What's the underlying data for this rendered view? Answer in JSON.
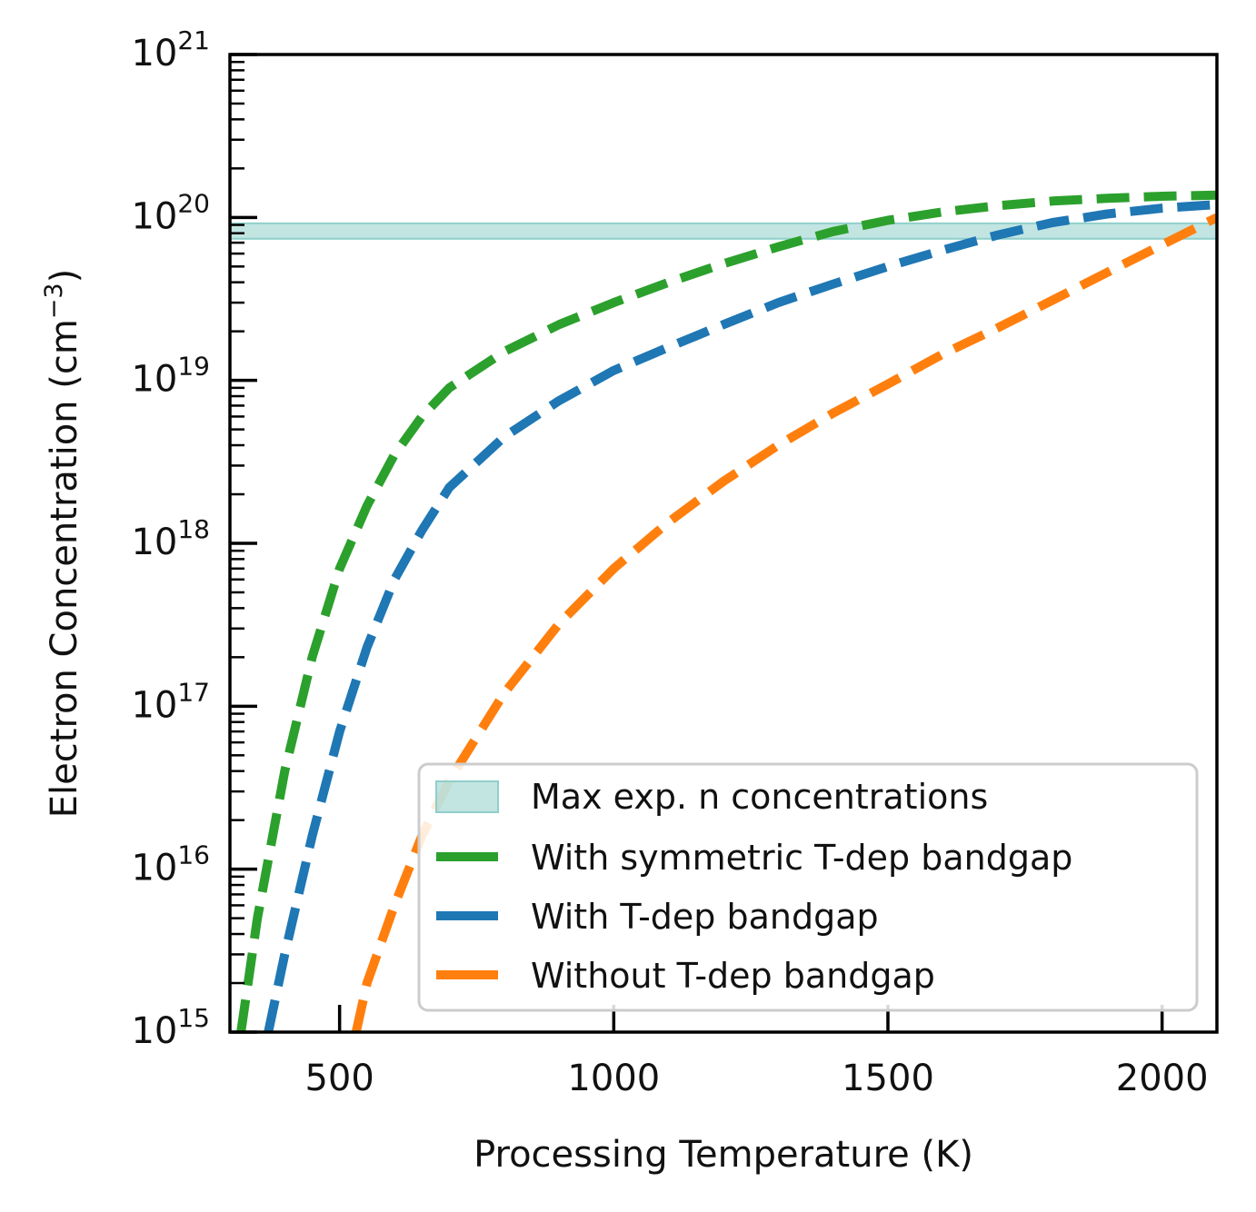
{
  "chart_data": {
    "type": "line",
    "xlabel": "Processing Temperature (K)",
    "ylabel": "Electron Concentration (cm",
    "ylabel_sup": "−3",
    "ylabel_close": ")",
    "xscale": "linear",
    "yscale": "log",
    "xlim": [
      300,
      2100
    ],
    "ylim": [
      1000000000000000.0,
      1e+21
    ],
    "x_ticks": [
      500,
      1000,
      1500,
      2000
    ],
    "x_tick_labels": [
      "500",
      "1000",
      "1500",
      "2000"
    ],
    "y_ticks": [
      1000000000000000.0,
      1e+16,
      1e+17,
      1e+18,
      1e+19,
      1e+20,
      1e+21
    ],
    "y_tick_base": "10",
    "y_tick_exponents": [
      "15",
      "16",
      "17",
      "18",
      "19",
      "20",
      "21"
    ],
    "band": {
      "name": "Max exp. n concentrations",
      "ymin": 7.4e+19,
      "ymax": 9.2e+19,
      "color": "#8fcfcb"
    },
    "series": [
      {
        "name": "With symmetric T-dep bandgap",
        "color": "#2ca02c",
        "x": [
          320,
          350,
          400,
          450,
          500,
          550,
          600,
          650,
          700,
          800,
          900,
          1000,
          1100,
          1200,
          1300,
          1400,
          1500,
          1600,
          1700,
          1800,
          1900,
          2000,
          2100
        ],
        "y": [
          1000000000000000.0,
          5000000000000000.0,
          4e+16,
          2e+17,
          7e+17,
          1.7e+18,
          3.5e+18,
          6e+18,
          9e+18,
          1.5e+19,
          2.2e+19,
          3e+19,
          4e+19,
          5.2e+19,
          6.6e+19,
          8.2e+19,
          9.6e+19,
          1.08e+20,
          1.18e+20,
          1.26e+20,
          1.31e+20,
          1.35e+20,
          1.37e+20
        ]
      },
      {
        "name": "With T-dep bandgap",
        "color": "#1f77b4",
        "x": [
          370,
          400,
          450,
          500,
          550,
          600,
          650,
          700,
          800,
          900,
          1000,
          1100,
          1200,
          1300,
          1400,
          1500,
          1600,
          1700,
          1800,
          1900,
          2000,
          2100
        ],
        "y": [
          1000000000000000.0,
          3000000000000000.0,
          1.6e+16,
          7e+16,
          2.3e+17,
          6e+17,
          1.2e+18,
          2.2e+18,
          4.5e+18,
          7.5e+18,
          1.15e+19,
          1.6e+19,
          2.2e+19,
          3e+19,
          3.9e+19,
          5e+19,
          6.3e+19,
          7.8e+19,
          9.3e+19,
          1.05e+20,
          1.14e+20,
          1.2e+20
        ]
      },
      {
        "name": "Without T-dep bandgap",
        "color": "#ff7f0e",
        "x": [
          530,
          550,
          600,
          650,
          700,
          800,
          900,
          1000,
          1100,
          1200,
          1300,
          1400,
          1500,
          1600,
          1700,
          1800,
          1900,
          2000,
          2100
        ],
        "y": [
          1000000000000000.0,
          2000000000000000.0,
          6000000000000000.0,
          1.6e+16,
          3.5e+16,
          1.2e+17,
          3.2e+17,
          7e+17,
          1.35e+18,
          2.4e+18,
          4e+18,
          6.3e+18,
          9.5e+18,
          1.45e+19,
          2.1e+19,
          3.1e+19,
          4.6e+19,
          6.8e+19,
          1e+20
        ]
      }
    ],
    "legend": {
      "placement": "lower-right",
      "entries": [
        "Max exp. n concentrations",
        "With symmetric T-dep bandgap",
        "With T-dep bandgap",
        "Without T-dep bandgap"
      ]
    },
    "grid": false
  }
}
